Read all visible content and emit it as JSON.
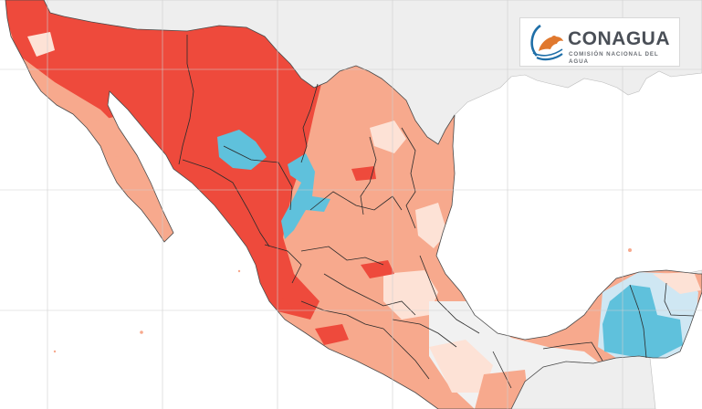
{
  "map": {
    "subject": "Anomaly map of Mexico",
    "colors": {
      "ocean": "#ffffff",
      "foreign_land": "#eeeeee",
      "grid": "#cfcfcf",
      "border": "#2b2b2b",
      "coast": "#4a4a4a",
      "no_change": "#f1f1f1",
      "warm_light": "#fde2d6",
      "warm_medium": "#f7a98d",
      "warm_strong": "#ee4a3c",
      "cool_light": "#cfe7f3",
      "cool_strong": "#5fc1dc"
    },
    "regions": [
      {
        "name": "northwest-mexico",
        "category": "warm_strong"
      },
      {
        "name": "baja-california",
        "category": "warm_strong"
      },
      {
        "name": "northeast-mexico",
        "category": "warm_medium"
      },
      {
        "name": "central-mexico",
        "category": "warm_medium"
      },
      {
        "name": "southeast-mexico",
        "category": "no_change"
      },
      {
        "name": "yucatan-peninsula",
        "category": "cool_strong"
      }
    ]
  },
  "logo": {
    "title": "CONAGUA",
    "subtitle": "COMISIÓN NACIONAL DEL AGUA",
    "colors": {
      "orange": "#e0782e",
      "blue": "#1f6fa8",
      "gray": "#4a4f57"
    }
  }
}
